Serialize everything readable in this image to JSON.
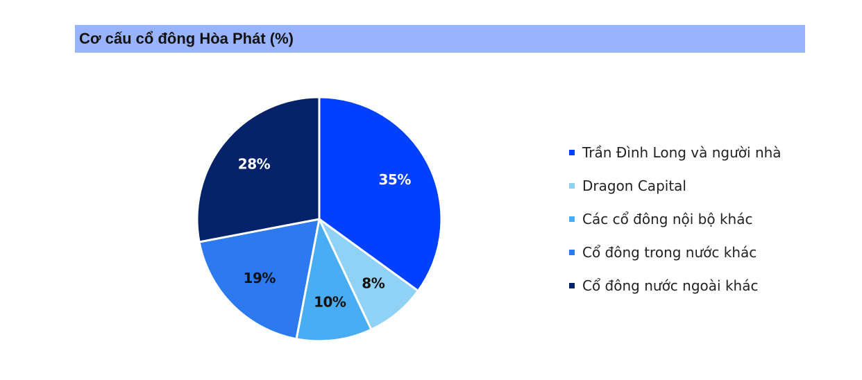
{
  "title": "Cơ cấu cổ đông Hòa Phát (%)",
  "colors": {
    "title_bar": "#99b4ff",
    "slice_border": "#ffffff",
    "label_on_dark": "#ffffff",
    "label_on_light": "#111111"
  },
  "chart_data": {
    "type": "pie",
    "title": "Cơ cấu cổ đông Hòa Phát (%)",
    "legend_position": "right",
    "start": "12 o'clock, clockwise",
    "slices": [
      {
        "label": "Trần Đình Long và người nhà",
        "value": 35,
        "display": "35%",
        "color": "#0040ff",
        "label_color": "#ffffff"
      },
      {
        "label": "Dragon Capital",
        "value": 8,
        "display": "8%",
        "color": "#8fd2f5",
        "label_color": "#111111"
      },
      {
        "label": "Các cổ đông nội bộ khác",
        "value": 10,
        "display": "10%",
        "color": "#48adf3",
        "label_color": "#111111"
      },
      {
        "label": "Cổ đông trong nước khác",
        "value": 19,
        "display": "19%",
        "color": "#2c79f0",
        "label_color": "#111111"
      },
      {
        "label": "Cổ đông nước ngoài khác",
        "value": 28,
        "display": "28%",
        "color": "#03226a",
        "label_color": "#ffffff"
      }
    ]
  }
}
